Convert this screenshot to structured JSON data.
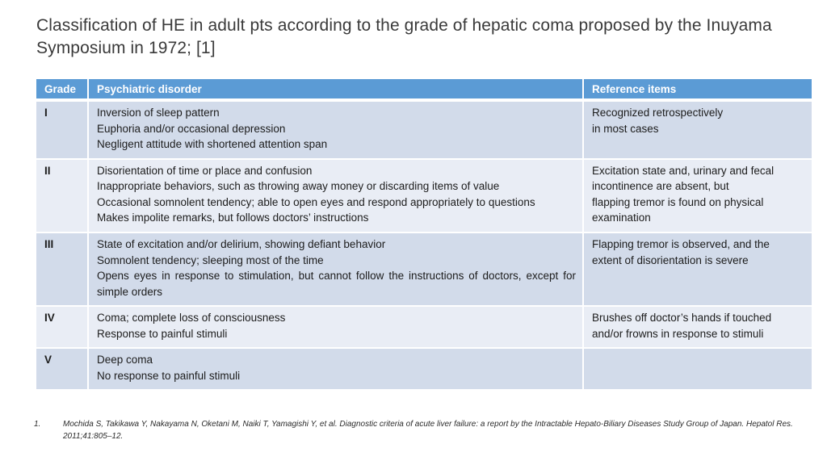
{
  "title": "Classification of HE in adult pts according to the grade of hepatic coma proposed by the Inuyama Symposium in 1972; [1]",
  "colors": {
    "header_bg": "#5b9bd5",
    "header_text": "#ffffff",
    "row_band_dark": "#d2dbea",
    "row_band_light": "#e9edf5",
    "title_text": "#3a3a3a",
    "body_text": "#1c1c1c"
  },
  "table": {
    "headers": [
      "Grade",
      "Psychiatric disorder",
      "Reference items"
    ],
    "rows": [
      {
        "grade": "I",
        "disorder": [
          "Inversion of sleep pattern",
          "Euphoria and/or occasional depression",
          "Negligent attitude with shortened attention span"
        ],
        "reference": [
          "Recognized retrospectively",
          "in most cases"
        ]
      },
      {
        "grade": "II",
        "disorder": [
          "Disorientation of time or place and confusion",
          "Inappropriate behaviors, such as throwing away money or discarding items of value",
          "Occasional somnolent tendency; able to open eyes and respond appropriately to questions",
          "Makes impolite remarks, but follows doctors’ instructions"
        ],
        "reference": [
          "Excitation state and, urinary and fecal",
          "incontinence are absent, but",
          "flapping tremor is found on physical",
          "examination"
        ]
      },
      {
        "grade": "III",
        "disorder": [
          "State of excitation and/or delirium, showing defiant behavior",
          "Somnolent tendency; sleeping most of the time",
          "Opens eyes in response to stimulation, but cannot follow the instructions of doctors, except for simple orders"
        ],
        "reference": [
          "Flapping tremor is observed, and the",
          "extent of disorientation is severe"
        ]
      },
      {
        "grade": "IV",
        "disorder": [
          "Coma; complete loss of consciousness",
          "Response to painful stimuli"
        ],
        "reference": [
          "Brushes off doctor’s hands if touched",
          "and/or frowns in response to stimuli"
        ]
      },
      {
        "grade": "V",
        "disorder": [
          "Deep coma",
          "No response to painful stimuli"
        ],
        "reference": []
      }
    ]
  },
  "footnote": {
    "marker": "1.",
    "lines": [
      "Mochida S, Takikawa Y, Nakayama N, Oketani M, Naiki T, Yamagishi Y, et al. Diagnostic criteria of acute liver failure: a report by the Intractable Hepato-Biliary Diseases Study Group of Japan. Hepatol Res.",
      "2011;41:805–12."
    ]
  }
}
